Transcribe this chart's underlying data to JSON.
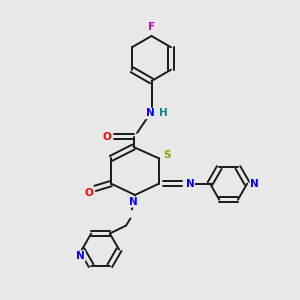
{
  "background_color": "#e8e8e8",
  "bond_color": "#1a1a1a",
  "atom_colors": {
    "F": "#cc00cc",
    "O": "#ff0000",
    "N": "#0000ff",
    "S": "#999900",
    "H": "#008888",
    "C": "#1a1a1a"
  },
  "figsize": [
    3.0,
    3.0
  ],
  "dpi": 100
}
